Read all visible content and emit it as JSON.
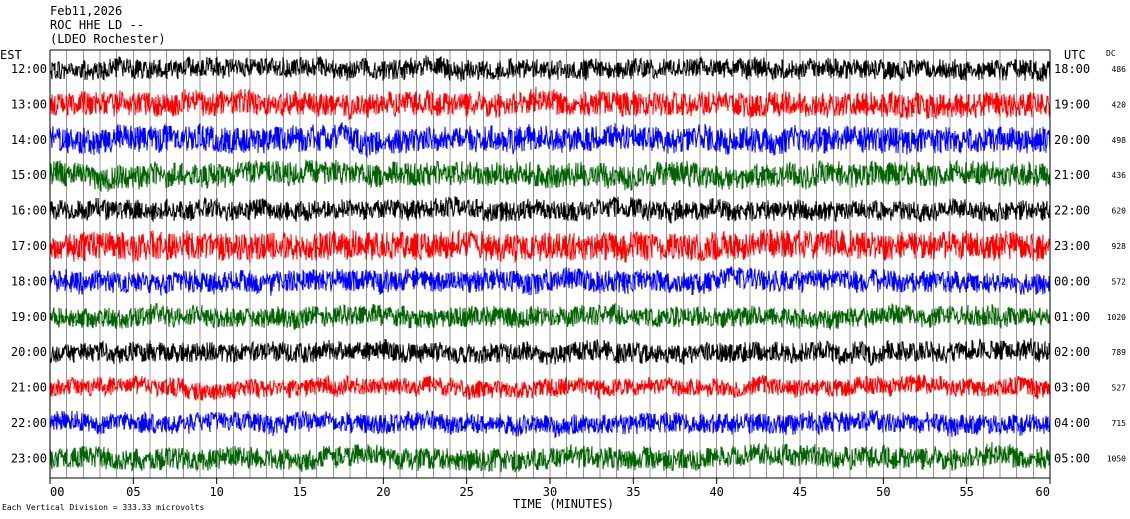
{
  "header": {
    "date": "Feb11,2026",
    "station": "ROC HHE LD --",
    "location": "(LDEO Rochester)"
  },
  "footer": {
    "scale_note": "Each Vertical Division = 333.33 microvolts"
  },
  "chart_data": {
    "type": "line",
    "title": "",
    "xlabel": "TIME (MINUTES)",
    "left_axis_label": "EST",
    "right_axis_label": "UTC",
    "dc_label": "DC",
    "xlim": [
      0,
      60
    ],
    "x_ticks": [
      "00",
      "05",
      "10",
      "15",
      "20",
      "25",
      "30",
      "35",
      "40",
      "45",
      "50",
      "55",
      "60"
    ],
    "grid": "vertical lines every minute",
    "trace_colors": [
      "#000000",
      "#ff0000",
      "#0000ff",
      "#006400"
    ],
    "rows": [
      {
        "est": "12:00",
        "utc": "18:00",
        "dc": "486"
      },
      {
        "est": "13:00",
        "utc": "19:00",
        "dc": "420"
      },
      {
        "est": "14:00",
        "utc": "20:00",
        "dc": "498"
      },
      {
        "est": "15:00",
        "utc": "21:00",
        "dc": "436"
      },
      {
        "est": "16:00",
        "utc": "22:00",
        "dc": "620"
      },
      {
        "est": "17:00",
        "utc": "23:00",
        "dc": "928"
      },
      {
        "est": "18:00",
        "utc": "00:00",
        "dc": "572"
      },
      {
        "est": "19:00",
        "utc": "01:00",
        "dc": "1020"
      },
      {
        "est": "20:00",
        "utc": "02:00",
        "dc": "789"
      },
      {
        "est": "21:00",
        "utc": "03:00",
        "dc": "527"
      },
      {
        "est": "22:00",
        "utc": "04:00",
        "dc": "715"
      },
      {
        "est": "23:00",
        "utc": "05:00",
        "dc": "1050"
      }
    ]
  }
}
